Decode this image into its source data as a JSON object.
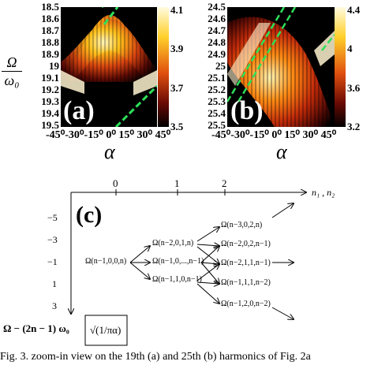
{
  "panel_a": {
    "label": "(a)",
    "yticks": [
      "18.5",
      "18.6",
      "18.7",
      "18.8",
      "18.9",
      "19",
      "19.1",
      "19.2",
      "19.3",
      "19.4",
      "19.5"
    ],
    "xticks": "-45⁰-30⁰-15⁰ 0⁰ 15⁰ 30⁰ 45⁰",
    "colorbar_ticks": [
      "4.1",
      "3.9",
      "3.7",
      "3.5"
    ],
    "ylabel_num": "Ω",
    "ylabel_den": "ω₀",
    "xlabel": "α"
  },
  "panel_b": {
    "label": "(b)",
    "yticks": [
      "24.5",
      "24.6",
      "24.7",
      "24.8",
      "24.9",
      "25",
      "25.1",
      "25.2",
      "25.3",
      "25.4",
      "25.5"
    ],
    "xticks": "-45⁰-30⁰-15⁰ 0⁰ 15⁰ 30⁰ 45⁰",
    "colorbar_ticks": [
      "4.4",
      "4",
      "3.6",
      "3.2"
    ],
    "xlabel": "α"
  },
  "panel_c": {
    "label": "(c)",
    "top_ticks": [
      "0",
      "1",
      "2"
    ],
    "axis_label": "n₁ , n₂",
    "left_ticks": [
      "−5",
      "−3",
      "−1",
      "1",
      "3"
    ],
    "nodes": [
      "Ω(n−1,0,0,n)",
      "Ω(n−2,0,1,n)",
      "Ω(n−1,0,...,n−1)",
      "Ω(n−1,1,0,n−1)",
      "Ω(n−3,0,2,n)",
      "Ω(n−2,0,2,n−1)",
      "Ω(n−2,1,1,n−1)",
      "Ω(n−1,1,1,n−2)",
      "Ω(n−1,2,0,n−2)"
    ],
    "bottom_expr": "Ω − (2n − 1) ω₀",
    "bracket_expr": "√(1/πα)"
  },
  "caption": "Fig. 3. zoom-in view on the 19th (a) and 25th (b) harmonics of Fig. 2a"
}
